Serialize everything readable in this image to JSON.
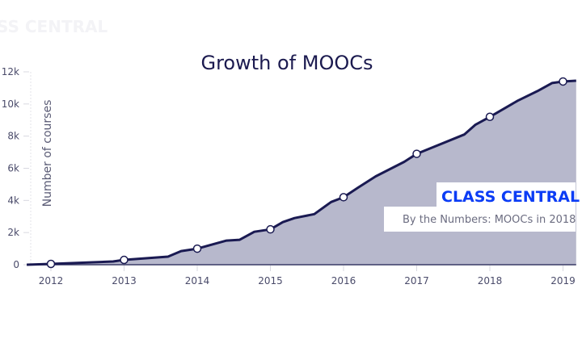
{
  "watermark": "SS CENTRAL",
  "logo": "CLASS CENTRAL",
  "subtitle": "By the Numbers: MOOCs in 2018",
  "colors": {
    "line": "#1a1a52",
    "fill": "#b7b8cc",
    "logo": "#0b3cf5"
  },
  "chart_data": {
    "type": "area",
    "title": "Growth of MOOCs",
    "xlabel": "",
    "ylabel": "Number of courses",
    "xlim": [
      2011.67,
      2019.18
    ],
    "ylim": [
      0,
      12000
    ],
    "x_ticks": [
      "2012",
      "2013",
      "2014",
      "2015",
      "2016",
      "2017",
      "2018",
      "2019"
    ],
    "y_ticks": [
      "0",
      "2k",
      "4k",
      "6k",
      "8k",
      "10k",
      "12k"
    ],
    "grid": false,
    "legend": "none",
    "series": [
      {
        "x": [
          2011.67,
          2012,
          2012.85,
          2013,
          2013.6,
          2013.78,
          2014,
          2014.4,
          2014.58,
          2014.78,
          2015,
          2015.17,
          2015.33,
          2015.6,
          2015.83,
          2016,
          2016.2,
          2016.44,
          2016.83,
          2017,
          2017.65,
          2017.8,
          2018,
          2018.38,
          2018.65,
          2018.85,
          2019,
          2019.18
        ],
        "y": [
          0,
          50,
          200,
          300,
          500,
          850,
          1000,
          1500,
          1550,
          2050,
          2200,
          2650,
          2900,
          3150,
          3900,
          4200,
          4800,
          5500,
          6400,
          6900,
          8100,
          8700,
          9200,
          10200,
          10800,
          11300,
          11400,
          11450
        ]
      }
    ],
    "markers": {
      "x": [
        2012,
        2013,
        2014,
        2015,
        2016,
        2017,
        2018,
        2019
      ],
      "y": [
        50,
        300,
        1000,
        2200,
        4200,
        6900,
        9200,
        11400
      ]
    }
  }
}
